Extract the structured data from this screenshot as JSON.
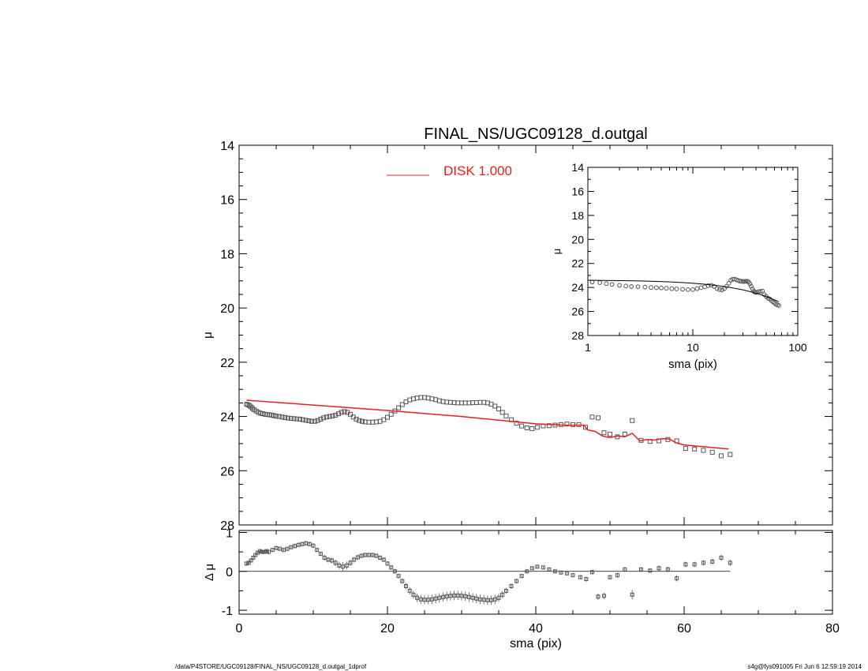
{
  "footer": {
    "left": "/data/P4STORE/UGC09128/FINAL_NS/UGC09128_d.outgal_1dprof",
    "right": "s4g@fys091005  Fri Jun  6 12:59:19 2014"
  },
  "chart_data": [
    {
      "id": "main",
      "type": "scatter",
      "title": "FINAL_NS/UGC09128_d.outgal",
      "xlabel": "",
      "ylabel": "μ",
      "xlim": [
        0,
        80
      ],
      "ylim": [
        28,
        14
      ],
      "y_inverted": true,
      "xticks": [],
      "yticks": [
        14,
        16,
        18,
        20,
        22,
        24,
        26,
        28
      ],
      "legend": {
        "placement": "top-center",
        "label": "DISK  1.000",
        "color": "#e8201e"
      },
      "series": [
        {
          "kind": "points",
          "marker": "open-square",
          "color": "#555555",
          "x": [
            1.0,
            1.2,
            1.4,
            1.6,
            1.8,
            2.0,
            2.3,
            2.6,
            2.9,
            3.2,
            3.5,
            3.8,
            4.1,
            4.4,
            4.7,
            5.0,
            5.4,
            5.8,
            6.2,
            6.6,
            7.0,
            7.4,
            7.8,
            8.2,
            8.6,
            9.0,
            9.4,
            9.8,
            10.2,
            10.6,
            11.0,
            11.4,
            11.8,
            12.2,
            12.6,
            13.0,
            13.4,
            13.8,
            14.2,
            14.6,
            15.0,
            15.4,
            15.8,
            16.2,
            16.6,
            17.0,
            17.5,
            18.0,
            18.5,
            19.0,
            19.5,
            20.0,
            20.5,
            21.0,
            21.5,
            22.0,
            22.5,
            23.0,
            23.5,
            24.0,
            24.5,
            25.0,
            25.5,
            26.0,
            26.5,
            27.0,
            27.5,
            28.0,
            28.5,
            29.0,
            29.5,
            30.0,
            30.5,
            31.0,
            31.5,
            32.0,
            32.5,
            33.0,
            33.5,
            34.0,
            34.5,
            35.0,
            35.5,
            36.0,
            36.7,
            37.4,
            38.1,
            38.8,
            39.5,
            40.2,
            41.0,
            41.8,
            42.6,
            43.4,
            44.2,
            45.0,
            45.8,
            46.7,
            47.6,
            48.4,
            49.2,
            50.0,
            51.0,
            52.0,
            53.0,
            54.2,
            55.4,
            56.6,
            57.8,
            59.0,
            60.2,
            61.4,
            62.6,
            63.8,
            65.0,
            66.2
          ],
          "y": [
            23.55,
            23.57,
            23.6,
            23.65,
            23.7,
            23.75,
            23.8,
            23.85,
            23.88,
            23.9,
            23.92,
            23.93,
            23.94,
            23.95,
            23.97,
            23.99,
            24.0,
            24.02,
            24.04,
            24.06,
            24.07,
            24.08,
            24.09,
            24.1,
            24.12,
            24.14,
            24.16,
            24.18,
            24.18,
            24.15,
            24.1,
            24.05,
            24.02,
            24.0,
            23.98,
            23.95,
            23.9,
            23.85,
            23.82,
            23.85,
            23.92,
            24.02,
            24.1,
            24.15,
            24.18,
            24.2,
            24.21,
            24.21,
            24.2,
            24.18,
            24.12,
            24.03,
            23.92,
            23.8,
            23.68,
            23.56,
            23.46,
            23.39,
            23.35,
            23.32,
            23.3,
            23.3,
            23.32,
            23.35,
            23.38,
            23.42,
            23.45,
            23.47,
            23.48,
            23.49,
            23.5,
            23.5,
            23.5,
            23.5,
            23.49,
            23.49,
            23.48,
            23.48,
            23.5,
            23.55,
            23.62,
            23.72,
            23.85,
            23.98,
            24.12,
            24.25,
            24.35,
            24.42,
            24.45,
            24.4,
            24.35,
            24.34,
            24.32,
            24.3,
            24.28,
            24.3,
            24.3,
            24.4,
            24.02,
            24.05,
            24.6,
            24.65,
            24.75,
            24.65,
            24.15,
            24.88,
            24.92,
            24.9,
            24.85,
            24.9,
            25.18,
            25.2,
            25.25,
            25.32,
            25.45,
            25.4
          ]
        },
        {
          "kind": "line",
          "color": "#e8201e",
          "name": "DISK  1.000",
          "x": [
            1.0,
            10,
            20,
            30,
            40,
            44,
            46.5,
            47,
            48,
            49,
            50,
            51,
            52,
            53,
            54,
            55,
            56,
            57,
            58,
            59,
            60,
            62,
            64,
            66
          ],
          "y": [
            23.4,
            23.58,
            23.78,
            24.0,
            24.27,
            24.32,
            24.32,
            24.5,
            24.55,
            24.72,
            24.78,
            24.72,
            24.75,
            24.62,
            24.9,
            24.85,
            24.87,
            24.82,
            24.83,
            24.98,
            25.05,
            25.1,
            25.15,
            25.2
          ]
        }
      ]
    },
    {
      "id": "residual",
      "type": "scatter",
      "title": "",
      "xlabel": "sma (pix)",
      "ylabel": "Δ μ",
      "xlim": [
        0,
        80
      ],
      "ylim": [
        -1.1,
        1.05
      ],
      "xticks": [
        0,
        20,
        40,
        60,
        80
      ],
      "yticks": [
        -1,
        0,
        1
      ],
      "zero_line": true,
      "series": [
        {
          "kind": "points-with-errorbars",
          "marker": "open-square",
          "color": "#555555",
          "x": [
            1.0,
            1.3,
            1.6,
            1.9,
            2.2,
            2.5,
            2.8,
            3.1,
            3.4,
            3.7,
            4.0,
            4.5,
            5.0,
            5.5,
            6.0,
            6.5,
            7.0,
            7.5,
            8.0,
            8.5,
            9.0,
            9.5,
            10.0,
            10.5,
            11.0,
            11.5,
            12.0,
            12.5,
            13.0,
            13.5,
            14.0,
            14.5,
            15.0,
            15.5,
            16.0,
            16.5,
            17.0,
            17.5,
            18.0,
            18.5,
            19.0,
            19.5,
            20.0,
            20.5,
            21.0,
            21.5,
            22.0,
            22.5,
            23.0,
            23.5,
            24.0,
            24.5,
            25.0,
            25.5,
            26.0,
            26.5,
            27.0,
            27.5,
            28.0,
            28.5,
            29.0,
            29.5,
            30.0,
            30.5,
            31.0,
            31.5,
            32.0,
            32.5,
            33.0,
            33.5,
            34.0,
            34.5,
            35.0,
            35.5,
            36.0,
            36.7,
            37.4,
            38.1,
            38.8,
            39.5,
            40.2,
            41.0,
            41.8,
            42.6,
            43.4,
            44.2,
            45.0,
            46.0,
            46.8,
            47.6,
            48.4,
            49.2,
            50.0,
            51.0,
            52.0,
            53.0,
            54.2,
            55.4,
            56.6,
            57.8,
            59.0,
            60.2,
            61.4,
            62.6,
            63.8,
            65.0,
            66.2
          ],
          "y": [
            0.2,
            0.22,
            0.28,
            0.35,
            0.42,
            0.48,
            0.52,
            0.5,
            0.5,
            0.52,
            0.5,
            0.55,
            0.6,
            0.58,
            0.55,
            0.58,
            0.62,
            0.65,
            0.68,
            0.7,
            0.72,
            0.7,
            0.66,
            0.55,
            0.45,
            0.35,
            0.3,
            0.28,
            0.22,
            0.15,
            0.12,
            0.15,
            0.22,
            0.3,
            0.36,
            0.4,
            0.42,
            0.42,
            0.42,
            0.4,
            0.35,
            0.3,
            0.2,
            0.1,
            0.0,
            -0.12,
            -0.25,
            -0.38,
            -0.5,
            -0.6,
            -0.68,
            -0.72,
            -0.73,
            -0.73,
            -0.72,
            -0.7,
            -0.68,
            -0.66,
            -0.64,
            -0.63,
            -0.62,
            -0.62,
            -0.63,
            -0.64,
            -0.66,
            -0.68,
            -0.7,
            -0.72,
            -0.73,
            -0.74,
            -0.74,
            -0.72,
            -0.68,
            -0.6,
            -0.5,
            -0.38,
            -0.25,
            -0.12,
            0.0,
            0.08,
            0.12,
            0.1,
            0.05,
            0.0,
            -0.03,
            -0.05,
            -0.1,
            -0.15,
            -0.2,
            -0.02,
            -0.65,
            -0.63,
            -0.15,
            -0.1,
            0.05,
            -0.6,
            0.05,
            0.02,
            0.08,
            0.05,
            -0.18,
            0.18,
            0.18,
            0.22,
            0.25,
            0.35,
            0.22
          ],
          "err": [
            0.03,
            0.03,
            0.03,
            0.03,
            0.04,
            0.04,
            0.04,
            0.04,
            0.04,
            0.04,
            0.04,
            0.05,
            0.05,
            0.05,
            0.05,
            0.05,
            0.05,
            0.06,
            0.06,
            0.06,
            0.06,
            0.06,
            0.06,
            0.06,
            0.06,
            0.07,
            0.07,
            0.07,
            0.08,
            0.1,
            0.12,
            0.1,
            0.08,
            0.07,
            0.07,
            0.06,
            0.06,
            0.06,
            0.06,
            0.06,
            0.06,
            0.06,
            0.06,
            0.06,
            0.06,
            0.06,
            0.07,
            0.08,
            0.09,
            0.1,
            0.11,
            0.12,
            0.12,
            0.12,
            0.12,
            0.12,
            0.12,
            0.12,
            0.12,
            0.12,
            0.12,
            0.12,
            0.12,
            0.12,
            0.12,
            0.12,
            0.12,
            0.12,
            0.12,
            0.12,
            0.12,
            0.12,
            0.1,
            0.09,
            0.08,
            0.07,
            0.06,
            0.05,
            0.05,
            0.04,
            0.04,
            0.04,
            0.04,
            0.04,
            0.04,
            0.04,
            0.05,
            0.05,
            0.06,
            0.06,
            0.08,
            0.08,
            0.06,
            0.06,
            0.06,
            0.12,
            0.06,
            0.06,
            0.07,
            0.07,
            0.08,
            0.07,
            0.07,
            0.07,
            0.07,
            0.08,
            0.08
          ]
        }
      ]
    },
    {
      "id": "inset",
      "type": "scatter",
      "title": "",
      "xlabel": "sma (pix)",
      "ylabel": "μ",
      "x_scale": "log",
      "xlim": [
        1,
        100
      ],
      "ylim": [
        28,
        14
      ],
      "y_inverted": true,
      "xticks": [
        1,
        10,
        100
      ],
      "yticks": [
        14,
        16,
        18,
        20,
        22,
        24,
        26,
        28
      ],
      "series": [
        {
          "kind": "points",
          "marker": "open-circle",
          "color": "#555555",
          "x": [
            1.1,
            1.3,
            1.5,
            1.7,
            2.0,
            2.3,
            2.6,
            3.0,
            3.5,
            4.0,
            4.5,
            5.0,
            5.6,
            6.3,
            7.0,
            8.0,
            9.0,
            10.0,
            11.0,
            12.0,
            13.0,
            14.0,
            15.0,
            16.0,
            17.0,
            18.0,
            19.0,
            20.0,
            21.0,
            22.0,
            23.0,
            24.0,
            25.0,
            26.0,
            27.0,
            28.0,
            29.0,
            30.0,
            31.0,
            32.0,
            33.0,
            34.0,
            35.0,
            36.0,
            37.0,
            38.0,
            39.0,
            40.0,
            42.0,
            44.0,
            46.0,
            48.0,
            50.0,
            52.0,
            54.0,
            56.0,
            58.0,
            60.0,
            62.0,
            64.0,
            66.0
          ],
          "y": [
            23.55,
            23.6,
            23.68,
            23.75,
            23.82,
            23.88,
            23.92,
            23.94,
            23.97,
            24.0,
            24.02,
            24.04,
            24.07,
            24.1,
            24.12,
            24.15,
            24.18,
            24.18,
            24.1,
            24.02,
            23.95,
            23.85,
            23.82,
            23.92,
            24.1,
            24.18,
            24.2,
            24.1,
            23.9,
            23.65,
            23.4,
            23.32,
            23.3,
            23.35,
            23.42,
            23.47,
            23.49,
            23.5,
            23.5,
            23.49,
            23.48,
            23.55,
            23.7,
            23.9,
            24.12,
            24.3,
            24.4,
            24.42,
            24.35,
            24.32,
            24.3,
            24.6,
            24.75,
            24.9,
            24.95,
            25.1,
            25.2,
            25.3,
            25.4,
            25.45,
            25.5
          ]
        },
        {
          "kind": "line",
          "color": "#000000",
          "x": [
            1.0,
            66.0
          ],
          "y": [
            23.4,
            25.2
          ]
        }
      ]
    }
  ]
}
